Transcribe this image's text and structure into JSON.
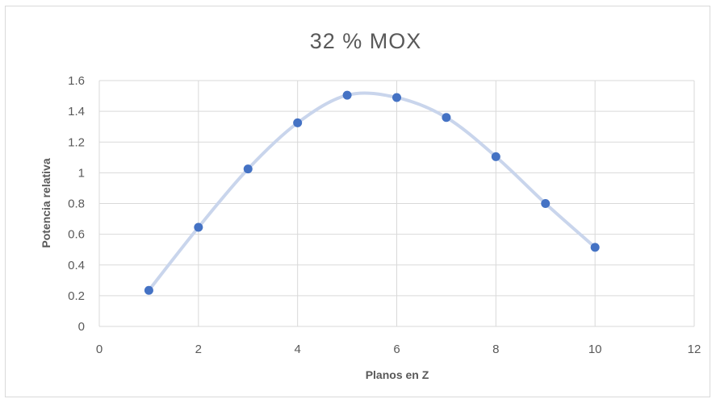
{
  "chart_data": {
    "type": "scatter",
    "title": "32 % MOX",
    "xlabel": "Planos en Z",
    "ylabel": "Potencia relativa",
    "xlim": [
      0,
      12
    ],
    "ylim": [
      0,
      1.6
    ],
    "xticks": [
      0,
      2,
      4,
      6,
      8,
      10,
      12
    ],
    "yticks": [
      0,
      0.2,
      0.4,
      0.6,
      0.8,
      1,
      1.2,
      1.4,
      1.6
    ],
    "ytick_labels": [
      "0",
      "0.2",
      "0.4",
      "0.6",
      "0.8",
      "1",
      "1.2",
      "1.4",
      "1.6"
    ],
    "grid": true,
    "legend": "none",
    "series": [
      {
        "x": [
          1,
          2,
          3,
          4,
          5,
          6,
          7,
          8,
          9,
          10
        ],
        "y": [
          0.235,
          0.645,
          1.025,
          1.325,
          1.505,
          1.49,
          1.36,
          1.105,
          0.8,
          0.515
        ],
        "marker_color": "#4472c4",
        "trend_color": "#c9d5ec",
        "trend": "smooth"
      }
    ]
  }
}
